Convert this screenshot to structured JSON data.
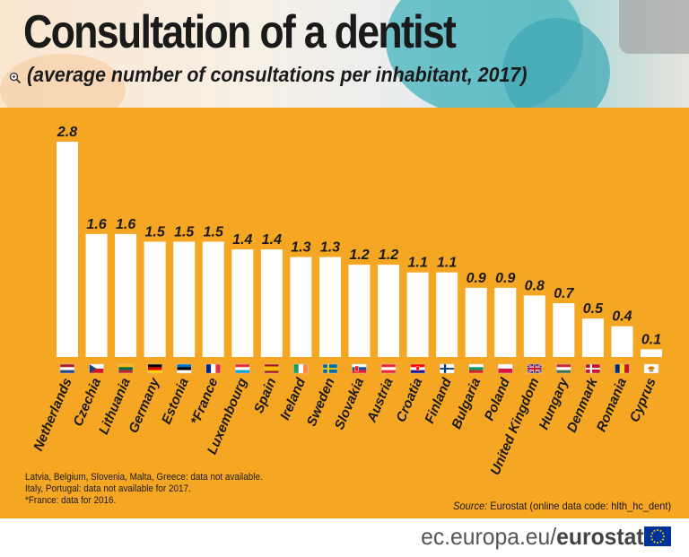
{
  "header": {
    "title": "Consultation of a dentist",
    "subtitle": "(average number of consultations per inhabitant, 2017)"
  },
  "chart_data": {
    "type": "bar",
    "title": "Consultation of a dentist",
    "subtitle": "(average number of consultations per inhabitant, 2017)",
    "categories": [
      "Netherlands",
      "Czechia",
      "Lithuania",
      "Germany",
      "Estonia",
      "*France",
      "Luxembourg",
      "Spain",
      "Ireland",
      "Sweden",
      "Slovakia",
      "Austria",
      "Croatia",
      "Finland",
      "Bulgaria",
      "Poland",
      "United Kingdom",
      "Hungary",
      "Denmark",
      "Romania",
      "Cyprus"
    ],
    "values": [
      2.8,
      1.6,
      1.6,
      1.5,
      1.5,
      1.5,
      1.4,
      1.4,
      1.3,
      1.3,
      1.2,
      1.2,
      1.1,
      1.1,
      0.9,
      0.9,
      0.8,
      0.7,
      0.5,
      0.4,
      0.1
    ],
    "value_labels": [
      "2.8",
      "1.6",
      "1.6",
      "1.5",
      "1.5",
      "1.5",
      "1.4",
      "1.4",
      "1.3",
      "1.3",
      "1.2",
      "1.2",
      "1.1",
      "1.1",
      "0.9",
      "0.9",
      "0.8",
      "0.7",
      "0.5",
      "0.4",
      "0.1"
    ],
    "ylim": [
      0,
      2.8
    ],
    "grid": false,
    "legend": "none",
    "bar_color": "#ffffff",
    "background_color": "#f5a623"
  },
  "flag_icons": [
    "netherlands-flag-icon",
    "czechia-flag-icon",
    "lithuania-flag-icon",
    "germany-flag-icon",
    "estonia-flag-icon",
    "france-flag-icon",
    "luxembourg-flag-icon",
    "spain-flag-icon",
    "ireland-flag-icon",
    "sweden-flag-icon",
    "slovakia-flag-icon",
    "austria-flag-icon",
    "croatia-flag-icon",
    "finland-flag-icon",
    "bulgaria-flag-icon",
    "poland-flag-icon",
    "united-kingdom-flag-icon",
    "hungary-flag-icon",
    "denmark-flag-icon",
    "romania-flag-icon",
    "cyprus-flag-icon"
  ],
  "notes": [
    "Latvia, Belgium, Slovenia, Malta, Greece: data not available.",
    "Italy, Portugal: data not available for 2017.",
    "*France: data for 2016."
  ],
  "source": {
    "label": "Source:",
    "text": " Eurostat (online data code: hlth_hc_dent)"
  },
  "footer": {
    "domain": "ec.europa.eu/",
    "brand": "eurostat"
  },
  "colors": {
    "accent": "#f5a623",
    "text": "#1a1a1a",
    "eu_blue": "#003399",
    "eu_gold": "#ffcc00"
  }
}
